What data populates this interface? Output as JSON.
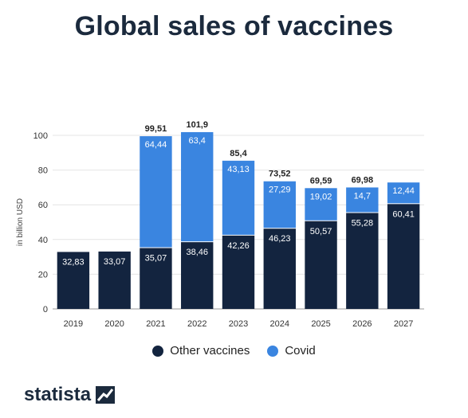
{
  "title": "Global sales of vaccines",
  "brand": "statista",
  "colors": {
    "other": "#13243f",
    "covid": "#3a85e0"
  },
  "legend": {
    "other": "Other vaccines",
    "covid": "Covid"
  },
  "chart_data": {
    "type": "bar",
    "stacked": true,
    "title": "Global sales of vaccines",
    "xlabel": "",
    "ylabel": "in billion USD",
    "ylim": [
      0,
      100
    ],
    "yticks": [
      0,
      20,
      40,
      60,
      80,
      100
    ],
    "grid": true,
    "legend_position": "bottom",
    "categories": [
      "2019",
      "2020",
      "2021",
      "2022",
      "2023",
      "2024",
      "2025",
      "2026",
      "2027"
    ],
    "series": [
      {
        "name": "Other vaccines",
        "values": [
          32.83,
          33.07,
          35.07,
          38.46,
          42.26,
          46.23,
          50.57,
          55.28,
          60.41
        ],
        "labels": [
          "32,83",
          "33,07",
          "35,07",
          "38,46",
          "42,26",
          "46,23",
          "50,57",
          "55,28",
          "60,41"
        ]
      },
      {
        "name": "Covid",
        "values": [
          0,
          0,
          64.44,
          63.4,
          43.13,
          27.29,
          19.02,
          14.7,
          12.44
        ],
        "labels": [
          "",
          "",
          "64,44",
          "63,4",
          "43,13",
          "27,29",
          "19,02",
          "14,7",
          "12,44"
        ]
      }
    ],
    "totals": [
      "",
      "",
      "99,51",
      "101,9",
      "85,4",
      "73,52",
      "69,59",
      "69,98",
      ""
    ]
  }
}
